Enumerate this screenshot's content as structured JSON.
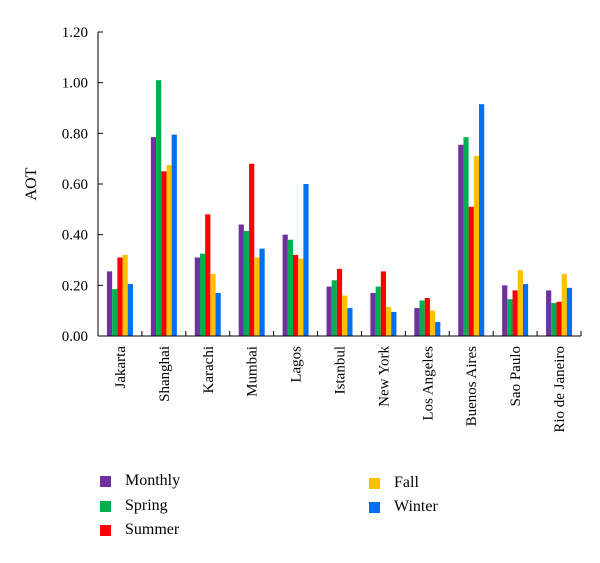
{
  "chart_data": {
    "type": "bar",
    "ylabel": "AOT",
    "ylim": [
      0,
      1.2
    ],
    "yticks": [
      "0.00",
      "0.20",
      "0.40",
      "0.60",
      "0.80",
      "1.00",
      "1.20"
    ],
    "grid": false,
    "legend_position": "bottom",
    "categories": [
      "Jakarta",
      "Shanghai",
      "Karachi",
      "Mumbai",
      "Lagos",
      "Istanbul",
      "New York",
      "Los Angeles",
      "Buenos Aires",
      "Sao Paulo",
      "Rio de Janeiro"
    ],
    "series": [
      {
        "name": "Monthly",
        "color": "#7030a0",
        "values": [
          0.255,
          0.785,
          0.31,
          0.44,
          0.4,
          0.195,
          0.17,
          0.11,
          0.755,
          0.2,
          0.18
        ]
      },
      {
        "name": "Spring",
        "color": "#00b050",
        "values": [
          0.185,
          1.01,
          0.325,
          0.415,
          0.38,
          0.22,
          0.195,
          0.14,
          0.785,
          0.145,
          0.13
        ]
      },
      {
        "name": "Summer",
        "color": "#ff0000",
        "values": [
          0.31,
          0.65,
          0.48,
          0.68,
          0.32,
          0.265,
          0.255,
          0.15,
          0.51,
          0.18,
          0.135
        ]
      },
      {
        "name": "Fall",
        "color": "#ffc000",
        "values": [
          0.32,
          0.675,
          0.245,
          0.31,
          0.305,
          0.16,
          0.115,
          0.1,
          0.71,
          0.26,
          0.245
        ]
      },
      {
        "name": "Winter",
        "color": "#0070f0",
        "values": [
          0.205,
          0.795,
          0.17,
          0.345,
          0.6,
          0.11,
          0.095,
          0.055,
          0.915,
          0.205,
          0.19
        ]
      }
    ]
  }
}
